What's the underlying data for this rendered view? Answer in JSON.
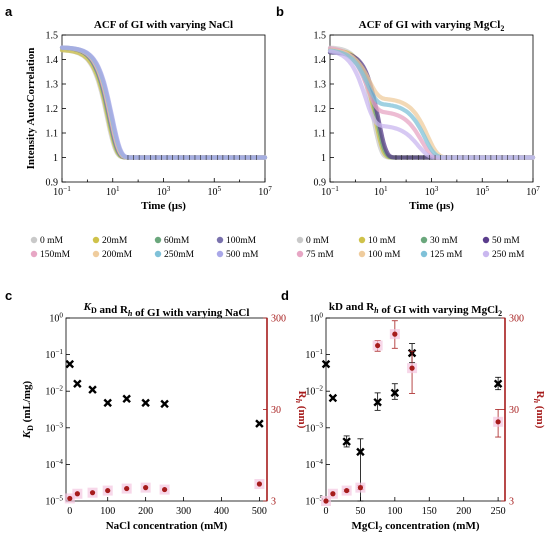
{
  "chart_data": [
    {
      "panel": "a",
      "type": "line",
      "title": "ACF of GI with varying NaCl",
      "xlabel": "Time (μs)",
      "ylabel": "Intensity AutoCorrelation",
      "xscale": "log",
      "xlim": [
        0.1,
        10000000
      ],
      "ylim": [
        0.9,
        1.5
      ],
      "x_ticks": [
        "10−1",
        "101",
        "103",
        "105",
        "107"
      ],
      "y_ticks": [
        "0.9",
        "1",
        "1.1",
        "1.2",
        "1.3",
        "1.4",
        "1.5"
      ],
      "legend_position": "bottom",
      "series": [
        {
          "name": "0 mM",
          "color": "#c9c9c9",
          "start": 1.44,
          "baseline": 1.0,
          "tau": 6.0,
          "beta": 1.3
        },
        {
          "name": "20mM",
          "color": "#cfc24a",
          "start": 1.44,
          "baseline": 1.0,
          "tau": 6.5,
          "beta": 1.3
        },
        {
          "name": "60mM",
          "color": "#6aa77c",
          "start": 1.45,
          "baseline": 1.0,
          "tau": 7.0,
          "beta": 1.3
        },
        {
          "name": "100mM",
          "color": "#7a72ad",
          "start": 1.45,
          "baseline": 1.0,
          "tau": 7.5,
          "beta": 1.3
        },
        {
          "name": "150mM",
          "color": "#e7a6c4",
          "start": 1.45,
          "baseline": 1.0,
          "tau": 8.0,
          "beta": 1.3
        },
        {
          "name": "200mM",
          "color": "#efcc9d",
          "start": 1.45,
          "baseline": 1.0,
          "tau": 8.5,
          "beta": 1.3
        },
        {
          "name": "250mM",
          "color": "#7fc1d8",
          "start": 1.45,
          "baseline": 1.0,
          "tau": 9.0,
          "beta": 1.3
        },
        {
          "name": "500 mM",
          "color": "#a9a7e8",
          "start": 1.45,
          "baseline": 1.0,
          "tau": 9.5,
          "beta": 1.3
        }
      ]
    },
    {
      "panel": "b",
      "type": "line",
      "title": "ACF of GI with varying MgCl2",
      "xlabel": "Time (μs)",
      "xscale": "log",
      "xlim": [
        0.1,
        10000000
      ],
      "ylim": [
        0.9,
        1.5
      ],
      "x_ticks": [
        "10−1",
        "101",
        "103",
        "105",
        "107"
      ],
      "y_ticks": [
        "0.9",
        "1",
        "1.1",
        "1.2",
        "1.3",
        "1.4",
        "1.5"
      ],
      "legend_position": "bottom",
      "series": [
        {
          "name": "0 mM",
          "color": "#c9c9c9",
          "start": 1.45,
          "baseline": 1.0,
          "tau": 5.0,
          "beta": 1.4,
          "tail_frac": 0.0,
          "tau2": 200
        },
        {
          "name": "10 mM",
          "color": "#cfc24a",
          "start": 1.44,
          "baseline": 1.0,
          "tau": 6.0,
          "beta": 1.4,
          "tail_frac": 0.0,
          "tau2": 200
        },
        {
          "name": "30 mM",
          "color": "#6aa77c",
          "start": 1.43,
          "baseline": 1.0,
          "tau": 7.0,
          "beta": 1.4,
          "tail_frac": 0.0,
          "tau2": 200
        },
        {
          "name": "50 mM",
          "color": "#5a3d8c",
          "start": 1.43,
          "baseline": 1.0,
          "tau": 8.0,
          "beta": 1.4,
          "tail_frac": 0.0,
          "tau2": 200
        },
        {
          "name": "75 mM",
          "color": "#e7a6c4",
          "start": 1.45,
          "baseline": 1.0,
          "tau": 3.0,
          "beta": 1.2,
          "tail_frac": 0.42,
          "tau2": 400
        },
        {
          "name": "100 mM",
          "color": "#efcc9d",
          "start": 1.44,
          "baseline": 1.0,
          "tau": 3.5,
          "beta": 1.2,
          "tail_frac": 0.55,
          "tau2": 700
        },
        {
          "name": "125 mM",
          "color": "#7fc1d8",
          "start": 1.44,
          "baseline": 1.0,
          "tau": 3.0,
          "beta": 1.2,
          "tail_frac": 0.5,
          "tau2": 550
        },
        {
          "name": "250 mM",
          "color": "#c9b7ef",
          "start": 1.44,
          "baseline": 1.0,
          "tau": 2.5,
          "beta": 1.2,
          "tail_frac": 0.3,
          "tau2": 300
        }
      ]
    },
    {
      "panel": "c",
      "type": "scatter",
      "title": "KD and Rh of GI with varying NaCl",
      "xlabel": "NaCl concentration (mM)",
      "ylabel_left": "KD (mL/mg)",
      "ylabel_right": "Rh (nm)",
      "xlim": [
        -10,
        520
      ],
      "x_ticks": [
        0,
        100,
        200,
        300,
        400,
        500
      ],
      "y_left_scale": "log",
      "y_left_lim": [
        1e-05,
        1
      ],
      "y_left_ticks": [
        "10−5",
        "10−4",
        "10−3",
        "10−2",
        "10−1",
        "100"
      ],
      "y_right_scale": "log",
      "y_right_lim": [
        3,
        300
      ],
      "y_right_ticks": [
        "3",
        "30",
        "300"
      ],
      "series": [
        {
          "name": "KD",
          "color": "#000000",
          "marker": "x",
          "x": [
            0,
            20,
            60,
            100,
            150,
            200,
            250,
            500
          ],
          "y": [
            0.055,
            0.016,
            0.011,
            0.0048,
            0.0062,
            0.0048,
            0.0045,
            0.0013
          ]
        },
        {
          "name": "Rh",
          "color": "#a61c1c",
          "marker": "o",
          "x": [
            0,
            20,
            60,
            100,
            150,
            200,
            250,
            500
          ],
          "y": [
            3.2,
            3.6,
            3.7,
            3.9,
            4.1,
            4.2,
            4.0,
            4.6
          ]
        }
      ]
    },
    {
      "panel": "d",
      "type": "scatter",
      "title": "kD and Rh of GI with varying MgCl2",
      "xlabel": "MgCl2 concentration (mM)",
      "ylabel_right": "Rh (nm)",
      "xlim": [
        0,
        260
      ],
      "x_ticks": [
        0,
        50,
        100,
        150,
        200,
        250
      ],
      "y_left_scale": "log",
      "y_left_lim": [
        1e-05,
        1
      ],
      "y_left_ticks": [
        "10−5",
        "10−4",
        "10−3",
        "10−2",
        "10−1",
        "100"
      ],
      "y_right_scale": "log",
      "y_right_lim": [
        3,
        300
      ],
      "y_right_ticks": [
        "3",
        "30",
        "300"
      ],
      "series": [
        {
          "name": "kD",
          "color": "#000000",
          "marker": "x",
          "x": [
            0,
            10,
            30,
            50,
            75,
            100,
            125,
            250
          ],
          "y": [
            0.055,
            0.0065,
            0.00042,
            0.00022,
            0.005,
            0.009,
            0.11,
            0.016
          ],
          "err_low": [
            0.055,
            0.0065,
            0.0003,
            1e-05,
            0.003,
            0.006,
            0.06,
            0.011
          ],
          "err_high": [
            0.055,
            0.0065,
            0.0006,
            0.0005,
            0.009,
            0.016,
            0.2,
            0.024
          ]
        },
        {
          "name": "Rh",
          "color": "#a61c1c",
          "marker": "o",
          "x": [
            0,
            10,
            30,
            50,
            75,
            100,
            125,
            250
          ],
          "y": [
            3.0,
            3.6,
            3.9,
            4.2,
            150,
            200,
            85,
            22
          ],
          "err_low": [
            3.0,
            3.6,
            3.8,
            4.0,
            130,
            140,
            45,
            15
          ],
          "err_high": [
            3.0,
            3.6,
            4.0,
            4.4,
            170,
            280,
            130,
            30
          ]
        }
      ]
    }
  ],
  "panel_letters": [
    "a",
    "b",
    "c",
    "d"
  ]
}
